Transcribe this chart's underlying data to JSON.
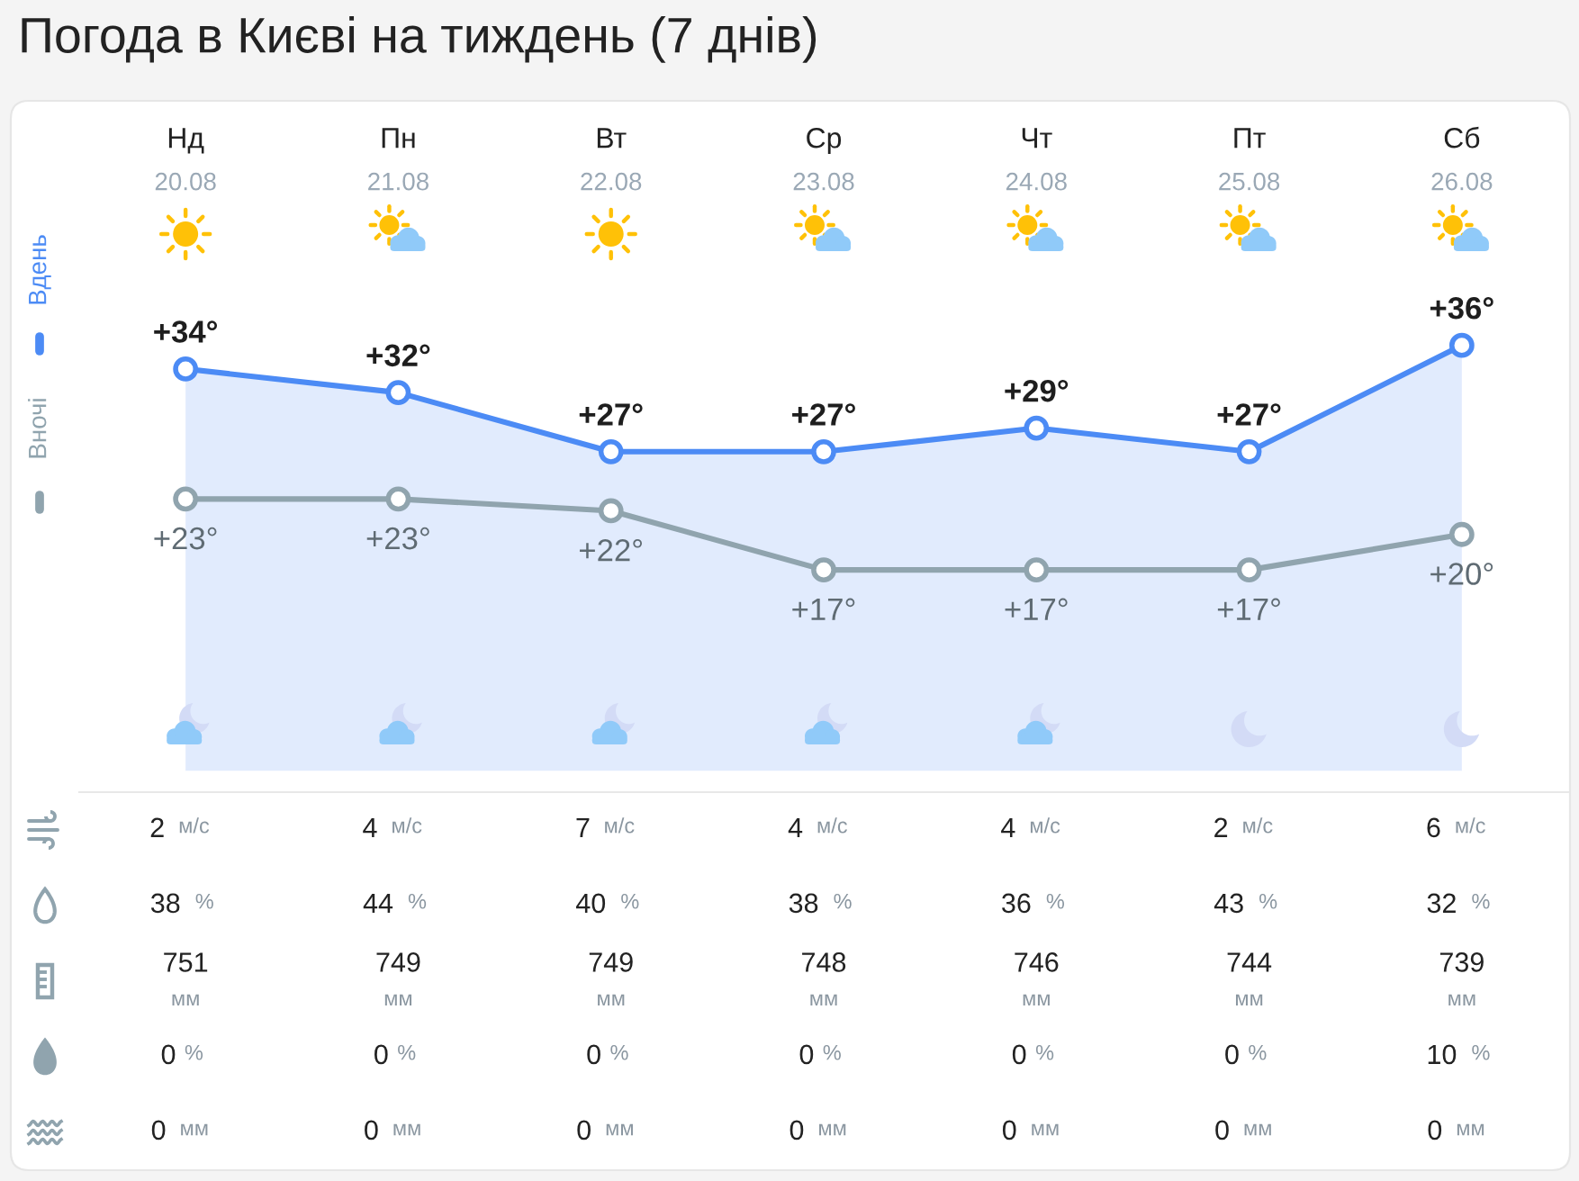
{
  "chart_data": [
    {
      "type": "line",
      "title": "Погода в Києві на тиждень (7 днів)",
      "categories": [
        "Нд\n20.08",
        "Пн\n21.08",
        "Вт\n22.08",
        "Ср\n23.08",
        "Чт\n24.08",
        "Пт\n25.08",
        "Сб\n26.08"
      ],
      "series": [
        {
          "name": "Вдень",
          "type": "area",
          "color": "#4c8bf5",
          "values": [
            34,
            32,
            27,
            27,
            29,
            27,
            36
          ],
          "value_labels": [
            "+34°",
            "+32°",
            "+27°",
            "+27°",
            "+29°",
            "+27°",
            "+36°"
          ]
        },
        {
          "name": "Вночі",
          "type": "line",
          "color": "#90a4ae",
          "values": [
            23,
            23,
            22,
            17,
            17,
            17,
            20
          ],
          "value_labels": [
            "+23°",
            "+23°",
            "+22°",
            "+17°",
            "+17°",
            "+17°",
            "+20°"
          ]
        }
      ],
      "tick_labels": "x",
      "marker": "circle",
      "line_style": "solid",
      "legend": "left"
    },
    {
      "type": "other",
      "categories": [
        null,
        null,
        null,
        null,
        null,
        null,
        null
      ],
      "annotations": [
        "2 м/с",
        "4 м/с",
        "7 м/с",
        "4 м/с",
        "4 м/с",
        "2 м/с",
        "6 м/с",
        "38%",
        "44%",
        "40%",
        "38%",
        "36%",
        "43%",
        "32%",
        "751\nмм",
        "749\nмм",
        "749\nмм",
        "748\nмм",
        "746\nмм",
        "744\nмм",
        "739\nмм",
        "0%",
        "0%",
        "0%",
        "0%",
        "0%",
        "0%",
        "10%",
        "0 мм",
        "0 мм",
        "0 мм",
        "0 мм",
        "0 мм",
        "0 мм",
        "0 мм"
      ]
    }
  ]
}
